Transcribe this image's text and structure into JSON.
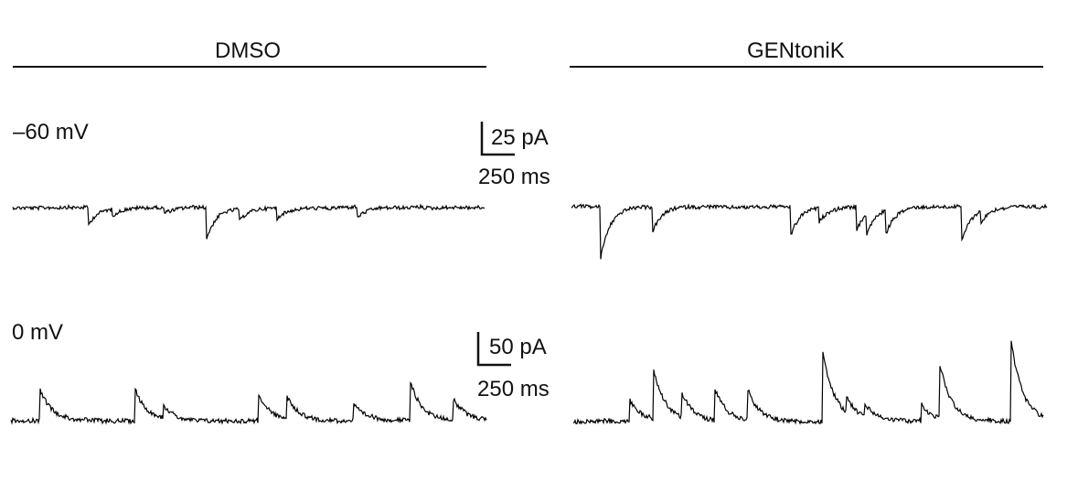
{
  "conditions": {
    "left": "DMSO",
    "right": "GENtoniK"
  },
  "rows": [
    {
      "voltage": "–60 mV",
      "scale_bar": {
        "current": "25 pA",
        "time": "250 ms"
      },
      "polarity": "inward",
      "traces": {
        "DMSO": {
          "events": [
            {
              "t": 0.16,
              "amp": 20
            },
            {
              "t": 0.21,
              "amp": 8
            },
            {
              "t": 0.32,
              "amp": 6
            },
            {
              "t": 0.41,
              "amp": 36
            },
            {
              "t": 0.48,
              "amp": 14
            },
            {
              "t": 0.56,
              "amp": 12
            },
            {
              "t": 0.73,
              "amp": 12
            }
          ]
        },
        "GENtoniK": {
          "events": [
            {
              "t": 0.06,
              "amp": 60
            },
            {
              "t": 0.17,
              "amp": 28
            },
            {
              "t": 0.46,
              "amp": 34
            },
            {
              "t": 0.52,
              "amp": 16
            },
            {
              "t": 0.6,
              "amp": 26
            },
            {
              "t": 0.62,
              "amp": 22
            },
            {
              "t": 0.66,
              "amp": 28
            },
            {
              "t": 0.82,
              "amp": 40
            },
            {
              "t": 0.86,
              "amp": 14
            }
          ]
        }
      }
    },
    {
      "voltage": "0 mV",
      "scale_bar": {
        "current": "50 pA",
        "time": "250 ms"
      },
      "polarity": "outward",
      "traces": {
        "DMSO": {
          "events": [
            {
              "t": 0.06,
              "amp": 36
            },
            {
              "t": 0.26,
              "amp": 36
            },
            {
              "t": 0.32,
              "amp": 14
            },
            {
              "t": 0.52,
              "amp": 30
            },
            {
              "t": 0.58,
              "amp": 24
            },
            {
              "t": 0.72,
              "amp": 18
            },
            {
              "t": 0.84,
              "amp": 42
            },
            {
              "t": 0.93,
              "amp": 22
            }
          ]
        },
        "GENtoniK": {
          "events": [
            {
              "t": 0.12,
              "amp": 24
            },
            {
              "t": 0.17,
              "amp": 56
            },
            {
              "t": 0.23,
              "amp": 28
            },
            {
              "t": 0.3,
              "amp": 36
            },
            {
              "t": 0.37,
              "amp": 34
            },
            {
              "t": 0.53,
              "amp": 80
            },
            {
              "t": 0.58,
              "amp": 18
            },
            {
              "t": 0.62,
              "amp": 14
            },
            {
              "t": 0.74,
              "amp": 18
            },
            {
              "t": 0.78,
              "amp": 60
            },
            {
              "t": 0.93,
              "amp": 94
            }
          ]
        }
      }
    }
  ]
}
